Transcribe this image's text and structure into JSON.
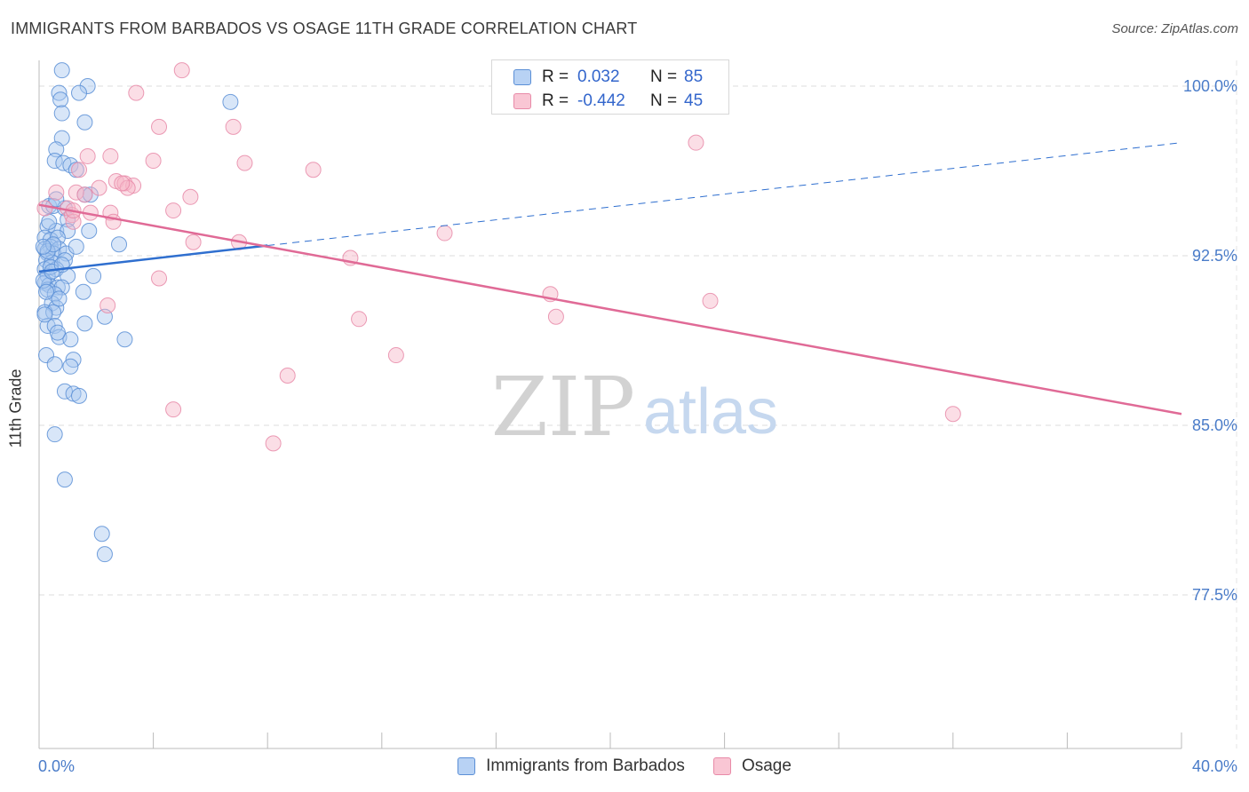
{
  "header": {
    "title": "IMMIGRANTS FROM BARBADOS VS OSAGE 11TH GRADE CORRELATION CHART",
    "source": "Source: ZipAtlas.com"
  },
  "watermark": {
    "zip": "ZIP",
    "atlas": "atlas"
  },
  "legend": {
    "barbados": {
      "r_label": "R =",
      "r_value": "0.032",
      "n_label": "N =",
      "n_value": "85",
      "name": "Immigrants from Barbados"
    },
    "osage": {
      "r_label": "R =",
      "r_value": "-0.442",
      "n_label": "N =",
      "n_value": "45",
      "name": "Osage"
    }
  },
  "colors": {
    "barbados_fill": "#a8c8f0",
    "barbados_stroke": "#5b8fd6",
    "barbados_line": "#2f6fcf",
    "osage_fill": "#f7b6c8",
    "osage_stroke": "#e88aa8",
    "osage_line": "#e06a96",
    "tick_text": "#4a7cc9",
    "grid": "#dddddd"
  },
  "chart_data": {
    "type": "scatter",
    "title": "IMMIGRANTS FROM BARBADOS VS OSAGE 11TH GRADE CORRELATION CHART",
    "xlabel": "",
    "ylabel": "11th Grade",
    "xlim": [
      0,
      40
    ],
    "ylim": [
      70.0,
      101.5
    ],
    "x_tick_labels": [
      "0.0%",
      "40.0%"
    ],
    "y_ticks": [
      77.5,
      85.0,
      92.5,
      100.0
    ],
    "y_tick_labels": [
      "77.5%",
      "85.0%",
      "92.5%",
      "100.0%"
    ],
    "grid": true,
    "series": [
      {
        "name": "Immigrants from Barbados",
        "r": 0.032,
        "n": 85,
        "trend": {
          "solid": [
            [
              0,
              91.8
            ],
            [
              8.0,
              92.95
            ]
          ],
          "dashed": [
            [
              8.0,
              92.95
            ],
            [
              40,
              97.5
            ]
          ]
        },
        "points": [
          [
            0.8,
            100.7
          ],
          [
            1.7,
            100.0
          ],
          [
            0.7,
            99.7
          ],
          [
            1.4,
            99.7
          ],
          [
            0.75,
            99.4
          ],
          [
            6.7,
            99.3
          ],
          [
            0.8,
            98.8
          ],
          [
            1.6,
            98.4
          ],
          [
            0.8,
            97.7
          ],
          [
            0.6,
            97.2
          ],
          [
            0.55,
            96.7
          ],
          [
            0.85,
            96.6
          ],
          [
            1.1,
            96.5
          ],
          [
            1.3,
            96.3
          ],
          [
            1.6,
            95.2
          ],
          [
            1.8,
            95.2
          ],
          [
            0.35,
            94.7
          ],
          [
            0.5,
            94.7
          ],
          [
            0.9,
            94.6
          ],
          [
            1.0,
            94.1
          ],
          [
            0.3,
            93.8
          ],
          [
            0.6,
            93.6
          ],
          [
            1.0,
            93.6
          ],
          [
            1.75,
            93.6
          ],
          [
            0.2,
            93.3
          ],
          [
            0.4,
            93.2
          ],
          [
            0.65,
            93.3
          ],
          [
            0.2,
            92.8
          ],
          [
            0.4,
            92.9
          ],
          [
            0.7,
            92.8
          ],
          [
            0.3,
            92.6
          ],
          [
            0.5,
            92.6
          ],
          [
            0.95,
            92.6
          ],
          [
            2.8,
            93.0
          ],
          [
            0.25,
            92.3
          ],
          [
            0.45,
            92.2
          ],
          [
            0.9,
            92.3
          ],
          [
            0.2,
            91.9
          ],
          [
            0.6,
            91.9
          ],
          [
            0.3,
            91.6
          ],
          [
            1.0,
            91.6
          ],
          [
            0.2,
            91.3
          ],
          [
            0.35,
            91.2
          ],
          [
            0.65,
            91.1
          ],
          [
            0.8,
            91.1
          ],
          [
            1.9,
            91.6
          ],
          [
            0.3,
            91.0
          ],
          [
            0.55,
            90.8
          ],
          [
            1.55,
            90.9
          ],
          [
            0.45,
            90.4
          ],
          [
            0.6,
            90.2
          ],
          [
            0.2,
            90.0
          ],
          [
            0.5,
            90.0
          ],
          [
            0.3,
            89.4
          ],
          [
            0.55,
            89.4
          ],
          [
            1.6,
            89.5
          ],
          [
            2.3,
            89.8
          ],
          [
            0.7,
            88.9
          ],
          [
            1.1,
            88.8
          ],
          [
            3.0,
            88.8
          ],
          [
            0.25,
            88.1
          ],
          [
            1.2,
            87.9
          ],
          [
            0.55,
            87.7
          ],
          [
            1.1,
            87.6
          ],
          [
            0.9,
            86.5
          ],
          [
            1.2,
            86.4
          ],
          [
            1.4,
            86.3
          ],
          [
            0.55,
            84.6
          ],
          [
            0.9,
            82.6
          ],
          [
            2.2,
            80.2
          ],
          [
            2.3,
            79.3
          ],
          [
            0.3,
            92.7
          ],
          [
            0.15,
            91.4
          ],
          [
            0.25,
            90.9
          ],
          [
            0.4,
            92.0
          ],
          [
            0.5,
            93.0
          ],
          [
            0.35,
            94.0
          ],
          [
            0.6,
            95.0
          ],
          [
            0.2,
            89.9
          ],
          [
            0.7,
            90.6
          ],
          [
            0.45,
            91.8
          ],
          [
            0.8,
            92.1
          ],
          [
            1.3,
            92.9
          ],
          [
            0.65,
            89.1
          ],
          [
            0.15,
            92.9
          ]
        ]
      },
      {
        "name": "Osage",
        "r": -0.442,
        "n": 45,
        "trend": {
          "solid": [
            [
              0,
              94.75
            ],
            [
              40,
              85.5
            ]
          ]
        },
        "points": [
          [
            5.0,
            100.7
          ],
          [
            3.4,
            99.7
          ],
          [
            4.2,
            98.2
          ],
          [
            6.8,
            98.2
          ],
          [
            23.0,
            97.5
          ],
          [
            1.7,
            96.9
          ],
          [
            2.5,
            96.9
          ],
          [
            4.0,
            96.7
          ],
          [
            7.2,
            96.6
          ],
          [
            9.6,
            96.3
          ],
          [
            1.4,
            96.3
          ],
          [
            2.7,
            95.8
          ],
          [
            3.0,
            95.7
          ],
          [
            3.3,
            95.6
          ],
          [
            2.1,
            95.5
          ],
          [
            3.1,
            95.5
          ],
          [
            1.3,
            95.3
          ],
          [
            1.6,
            95.2
          ],
          [
            0.6,
            95.3
          ],
          [
            5.3,
            95.1
          ],
          [
            1.0,
            94.6
          ],
          [
            1.8,
            94.4
          ],
          [
            0.2,
            94.6
          ],
          [
            4.7,
            94.5
          ],
          [
            2.5,
            94.4
          ],
          [
            1.15,
            94.3
          ],
          [
            1.2,
            94.0
          ],
          [
            2.6,
            94.0
          ],
          [
            14.2,
            93.5
          ],
          [
            5.4,
            93.1
          ],
          [
            7.0,
            93.1
          ],
          [
            10.9,
            92.4
          ],
          [
            4.2,
            91.5
          ],
          [
            17.9,
            90.8
          ],
          [
            23.5,
            90.5
          ],
          [
            2.4,
            90.3
          ],
          [
            18.1,
            89.8
          ],
          [
            11.2,
            89.7
          ],
          [
            12.5,
            88.1
          ],
          [
            8.7,
            87.2
          ],
          [
            4.7,
            85.7
          ],
          [
            32.0,
            85.5
          ],
          [
            8.2,
            84.2
          ],
          [
            1.2,
            94.5
          ],
          [
            2.9,
            95.7
          ]
        ]
      }
    ]
  }
}
